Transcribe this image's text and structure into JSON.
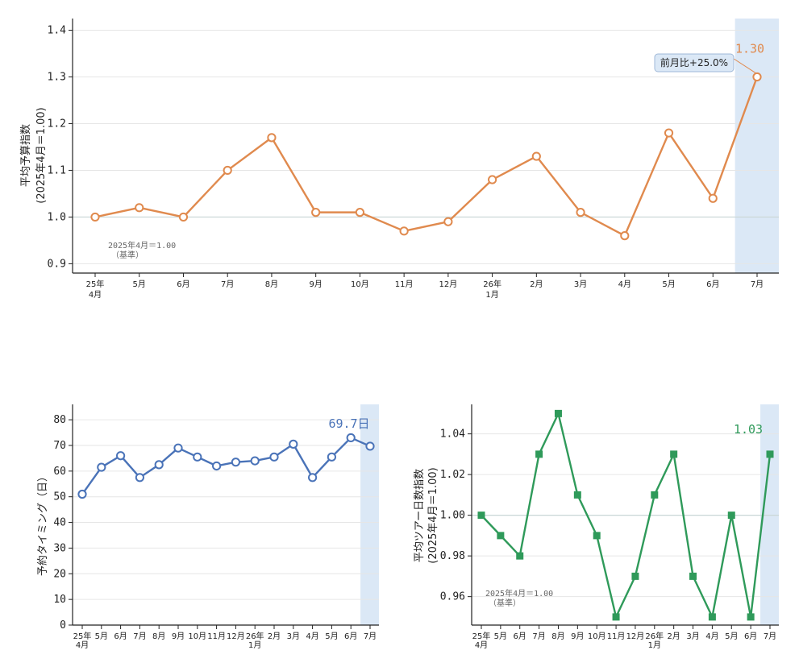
{
  "chart_data": [
    {
      "id": "top",
      "type": "line",
      "ylabel_line1": "平均予算指数",
      "ylabel_line2": "(2025年4月＝1.00)",
      "categories": [
        [
          "25年",
          "4月"
        ],
        [
          "5月"
        ],
        [
          "6月"
        ],
        [
          "7月"
        ],
        [
          "8月"
        ],
        [
          "9月"
        ],
        [
          "10月"
        ],
        [
          "11月"
        ],
        [
          "12月"
        ],
        [
          "26年",
          "1月"
        ],
        [
          "2月"
        ],
        [
          "3月"
        ],
        [
          "4月"
        ],
        [
          "5月"
        ],
        [
          "6月"
        ],
        [
          "7月"
        ]
      ],
      "values": [
        1.0,
        1.02,
        1.0,
        1.1,
        1.17,
        1.01,
        1.01,
        0.97,
        0.99,
        1.08,
        1.13,
        1.01,
        0.96,
        1.18,
        1.04,
        1.3
      ],
      "ylim": [
        0.88,
        1.425
      ],
      "yticks": [
        "0.9",
        "1.0",
        "1.1",
        "1.2",
        "1.3",
        "1.4"
      ],
      "color": "#e08a4e",
      "marker": "circle-open",
      "baseline": 1.0,
      "baseline_note": [
        "2025年4月＝1.00",
        "（基準）"
      ],
      "last_label": "1.30",
      "callout": "前月比+25.0%",
      "highlight_last": true
    },
    {
      "id": "bl",
      "type": "line",
      "ylabel_line1": "予約タイミング（日）",
      "categories": [
        [
          "25年",
          "4月"
        ],
        [
          "5月"
        ],
        [
          "6月"
        ],
        [
          "7月"
        ],
        [
          "8月"
        ],
        [
          "9月"
        ],
        [
          "10月"
        ],
        [
          "11月"
        ],
        [
          "12月"
        ],
        [
          "26年",
          "1月"
        ],
        [
          "2月"
        ],
        [
          "3月"
        ],
        [
          "4月"
        ],
        [
          "5月"
        ],
        [
          "6月"
        ],
        [
          "7月"
        ]
      ],
      "values": [
        51,
        61.5,
        66,
        57.5,
        62.5,
        69,
        65.5,
        62,
        63.5,
        64,
        65.5,
        70.5,
        57.5,
        65.5,
        73,
        69.7
      ],
      "ylim": [
        0,
        86
      ],
      "yticks": [
        "0",
        "10",
        "20",
        "30",
        "40",
        "50",
        "60",
        "70",
        "80"
      ],
      "color": "#4a73b8",
      "marker": "circle-open",
      "last_label": "69.7日",
      "highlight_last": true
    },
    {
      "id": "br",
      "type": "line",
      "ylabel_line1": "平均ツアー日数指数",
      "ylabel_line2": "(2025年4月＝1.00)",
      "categories": [
        [
          "25年",
          "4月"
        ],
        [
          "5月"
        ],
        [
          "6月"
        ],
        [
          "7月"
        ],
        [
          "8月"
        ],
        [
          "9月"
        ],
        [
          "10月"
        ],
        [
          "11月"
        ],
        [
          "12月"
        ],
        [
          "26年",
          "1月"
        ],
        [
          "2月"
        ],
        [
          "3月"
        ],
        [
          "4月"
        ],
        [
          "5月"
        ],
        [
          "6月"
        ],
        [
          "7月"
        ]
      ],
      "values": [
        1.0,
        0.99,
        0.98,
        1.03,
        1.05,
        1.01,
        0.99,
        0.95,
        0.97,
        1.01,
        1.03,
        0.97,
        0.95,
        1.0,
        0.95,
        1.03
      ],
      "ylim": [
        0.946,
        1.0545
      ],
      "yticks": [
        "0.96",
        "0.98",
        "1.00",
        "1.02",
        "1.04"
      ],
      "color": "#2f9a5a",
      "marker": "square",
      "baseline": 1.0,
      "baseline_note": [
        "2025年4月＝1.00",
        "（基準）"
      ],
      "last_label": "1.03",
      "highlight_last": true
    }
  ]
}
